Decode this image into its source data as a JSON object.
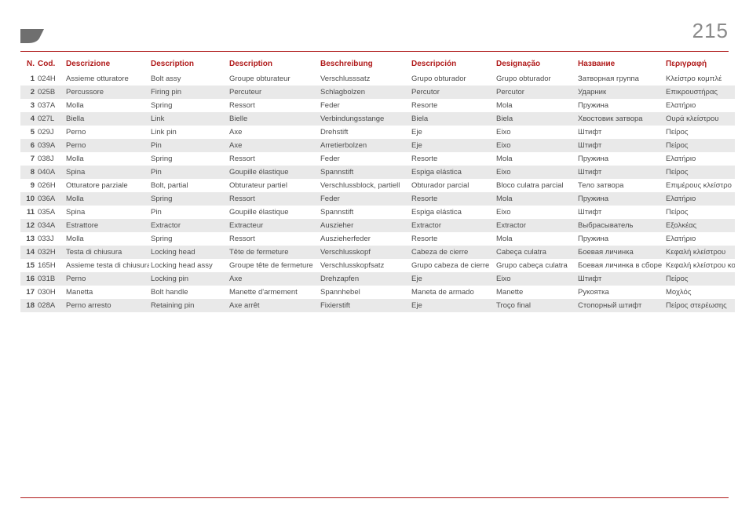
{
  "page_number": "215",
  "accent_color": "#b01b1b",
  "alt_row_color": "#e9e9e9",
  "text_color": "#4d4d4d",
  "headers": [
    "N.",
    "Cod.",
    "Descrizione",
    "Description",
    "Description",
    "Beschreibung",
    "Descripción",
    "Designação",
    "Название",
    "Περιγραφή"
  ],
  "col_widths": [
    "20px",
    "36px",
    "108px",
    "100px",
    "116px",
    "116px",
    "108px",
    "104px",
    "112px",
    "90px"
  ],
  "rows": [
    {
      "n": "1",
      "cod": "024H",
      "cells": [
        "Assieme otturatore",
        "Bolt assy",
        "Groupe obturateur",
        "Verschlusssatz",
        "Grupo obturador",
        "Grupo obturador",
        "Затворная группа",
        "Κλείστρο κομπλέ"
      ]
    },
    {
      "n": "2",
      "cod": "025B",
      "cells": [
        "Percussore",
        "Firing pin",
        "Percuteur",
        "Schlagbolzen",
        "Percutor",
        "Percutor",
        "Ударник",
        "Επικρουστήρας"
      ]
    },
    {
      "n": "3",
      "cod": "037A",
      "cells": [
        "Molla",
        "Spring",
        "Ressort",
        "Feder",
        "Resorte",
        "Mola",
        "Пружина",
        "Ελατήριο"
      ]
    },
    {
      "n": "4",
      "cod": "027L",
      "cells": [
        "Biella",
        "Link",
        "Bielle",
        "Verbindungsstange",
        "Biela",
        "Biela",
        "Хвостовик затвора",
        "Ουρά κλείστρου"
      ]
    },
    {
      "n": "5",
      "cod": "029J",
      "cells": [
        "Perno",
        "Link pin",
        "Axe",
        "Drehstift",
        "Eje",
        "Eixo",
        "Штифт",
        "Πείρος"
      ]
    },
    {
      "n": "6",
      "cod": "039A",
      "cells": [
        "Perno",
        "Pin",
        "Axe",
        "Arretierbolzen",
        "Eje",
        "Eixo",
        "Штифт",
        "Πείρος"
      ]
    },
    {
      "n": "7",
      "cod": "038J",
      "cells": [
        "Molla",
        "Spring",
        "Ressort",
        "Feder",
        "Resorte",
        "Mola",
        "Пружина",
        "Ελατήριο"
      ]
    },
    {
      "n": "8",
      "cod": "040A",
      "cells": [
        "Spina",
        "Pin",
        "Goupille élastique",
        "Spannstift",
        "Espiga elástica",
        "Eixo",
        "Штифт",
        "Πείρος"
      ]
    },
    {
      "n": "9",
      "cod": "026H",
      "cells": [
        "Otturatore parziale",
        "Bolt, partial",
        "Obturateur partiel",
        "Verschlussblock, partiell",
        "Obturador parcial",
        "Bloco culatra parcial",
        "Тело затвора",
        "Επιμέρους κλείστρο"
      ]
    },
    {
      "n": "10",
      "cod": "036A",
      "cells": [
        "Molla",
        "Spring",
        "Ressort",
        "Feder",
        "Resorte",
        "Mola",
        "Пружина",
        "Ελατήριο"
      ]
    },
    {
      "n": "11",
      "cod": "035A",
      "cells": [
        "Spina",
        "Pin",
        "Goupille élastique",
        "Spannstift",
        "Espiga elástica",
        "Eixo",
        "Штифт",
        "Πείρος"
      ]
    },
    {
      "n": "12",
      "cod": "034A",
      "cells": [
        "Estrattore",
        "Extractor",
        "Extracteur",
        "Auszieher",
        "Extractor",
        "Extractor",
        "Выбрасыватель",
        "Εξολκέας"
      ]
    },
    {
      "n": "13",
      "cod": "033J",
      "cells": [
        "Molla",
        "Spring",
        "Ressort",
        "Auszieherfeder",
        "Resorte",
        "Mola",
        "Пружина",
        "Ελατήριο"
      ]
    },
    {
      "n": "14",
      "cod": "032H",
      "cells": [
        "Testa di chiusura",
        "Locking head",
        "Tête de fermeture",
        "Verschlusskopf",
        "Cabeza de cierre",
        "Cabeça culatra",
        "Боевая личинка",
        "Κεφαλή κλείστρου"
      ]
    },
    {
      "n": "15",
      "cod": "165H",
      "cells": [
        "Assieme testa di chiusura",
        "Locking head assy",
        "Groupe tête de fermeture",
        "Verschlusskopfsatz",
        "Grupo cabeza de cierre",
        "Grupo cabeça culatra",
        "Боевая личинка в сборе",
        "Κεφαλή κλείστρου κομπλέ"
      ]
    },
    {
      "n": "16",
      "cod": "031B",
      "cells": [
        "Perno",
        "Locking pin",
        "Axe",
        "Drehzapfen",
        "Eje",
        "Eixo",
        "Штифт",
        "Πείρος"
      ]
    },
    {
      "n": "17",
      "cod": "030H",
      "cells": [
        "Manetta",
        "Bolt handle",
        "Manette d'armement",
        "Spannhebel",
        "Maneta de armado",
        "Manette",
        "Рукоятка",
        "Μοχλός"
      ]
    },
    {
      "n": "18",
      "cod": "028A",
      "cells": [
        "Perno arresto",
        "Retaining pin",
        "Axe arrêt",
        "Fixierstift",
        "Eje",
        "Troço final",
        "Стопорный штифт",
        "Πείρος στερέωσης"
      ]
    }
  ]
}
